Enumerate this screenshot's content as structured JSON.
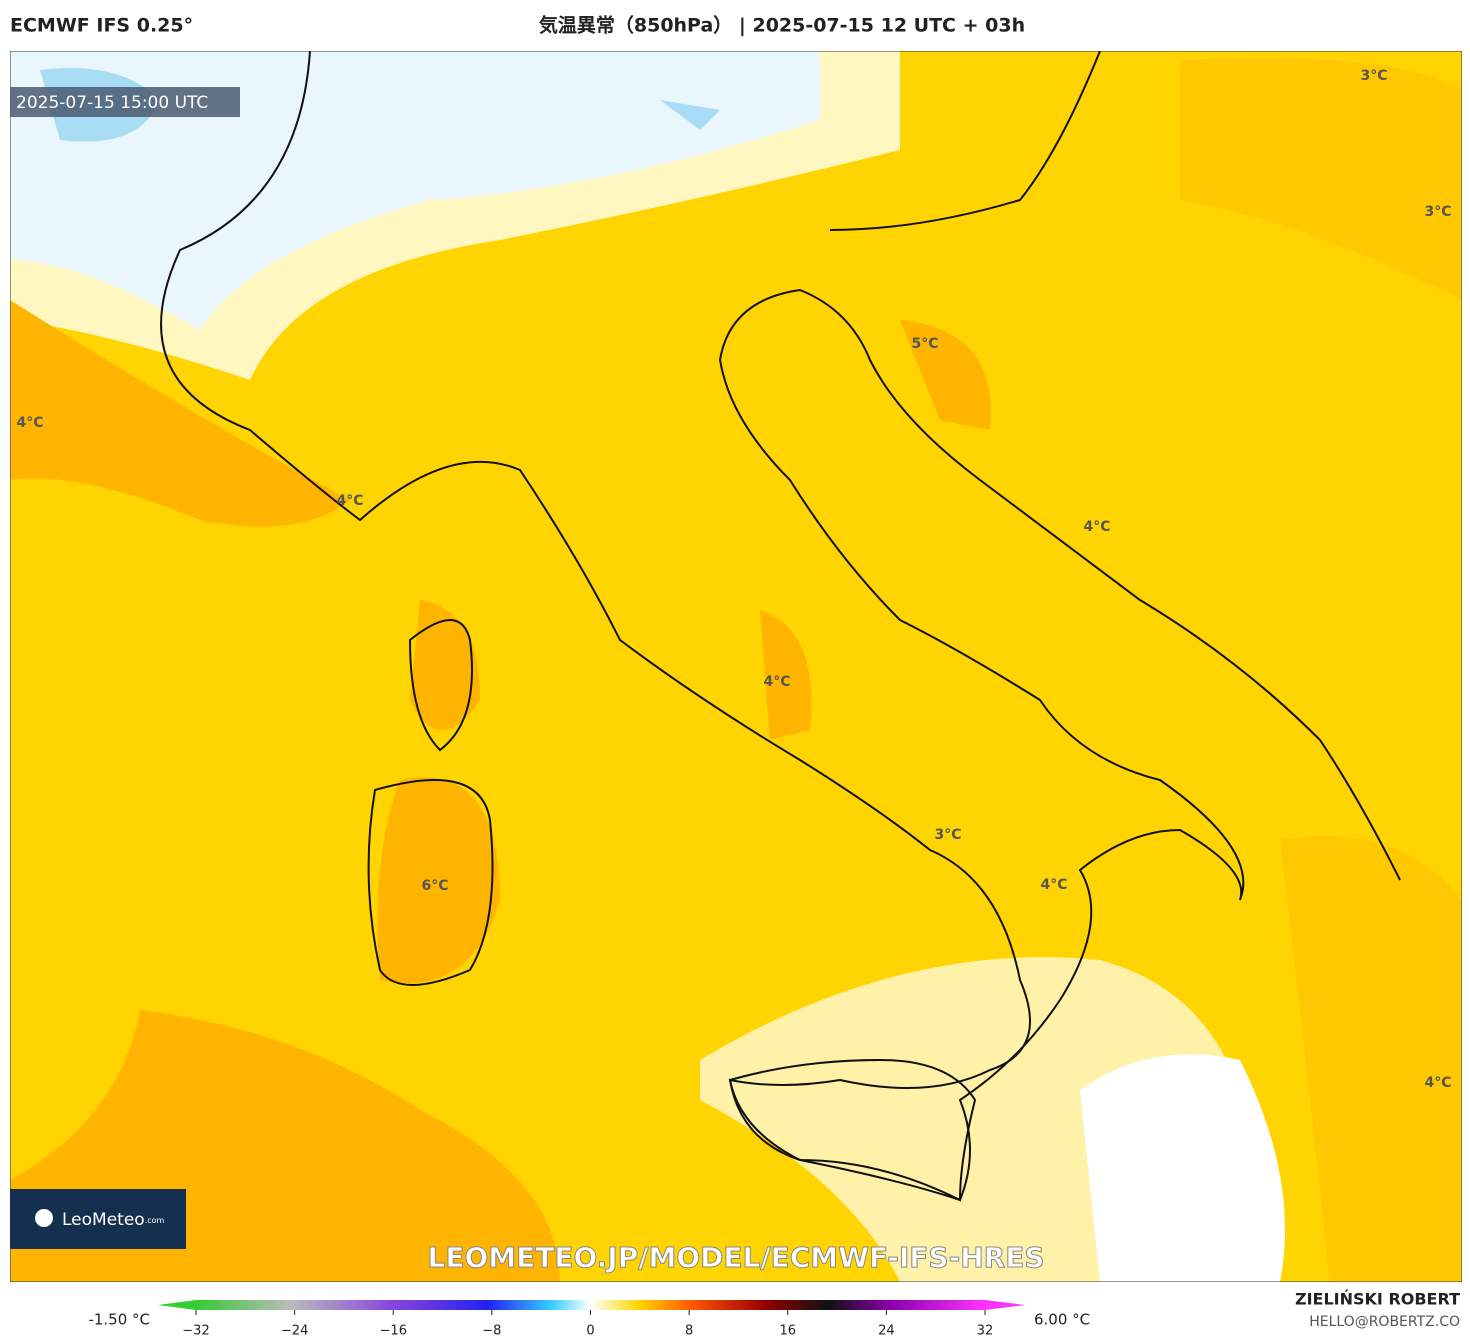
{
  "header": {
    "model": "ECMWF IFS 0.25°",
    "title": "気温異常（850hPa） | 2025-07-15 12 UTC + 03h"
  },
  "map": {
    "valid_time": "2025-07-15 15:00 UTC",
    "contour_labels": [
      "3°C",
      "3°C",
      "4°C",
      "4°C",
      "5°C",
      "4°C",
      "4°C",
      "6°C",
      "3°C",
      "4°C",
      "4°C"
    ],
    "logo": "LeoMeteo",
    "logo_suffix": ".com",
    "watermark": "LEOMETEO.JP/MODEL/ECMWF-IFS-HRES"
  },
  "colorbar": {
    "min_label": "-1.50 °C",
    "max_label": "6.00 °C",
    "lim": [
      -32,
      32
    ],
    "ticks": [
      {
        "value": -32,
        "label": "−32"
      },
      {
        "value": -24,
        "label": "−24"
      },
      {
        "value": -16,
        "label": "−16"
      },
      {
        "value": -8,
        "label": "−8"
      },
      0,
      8,
      16,
      24,
      32
    ]
  },
  "footer": {
    "author": "ZIELIŃSKI ROBERT",
    "email": "HELLO@ROBERTZ.CO"
  }
}
